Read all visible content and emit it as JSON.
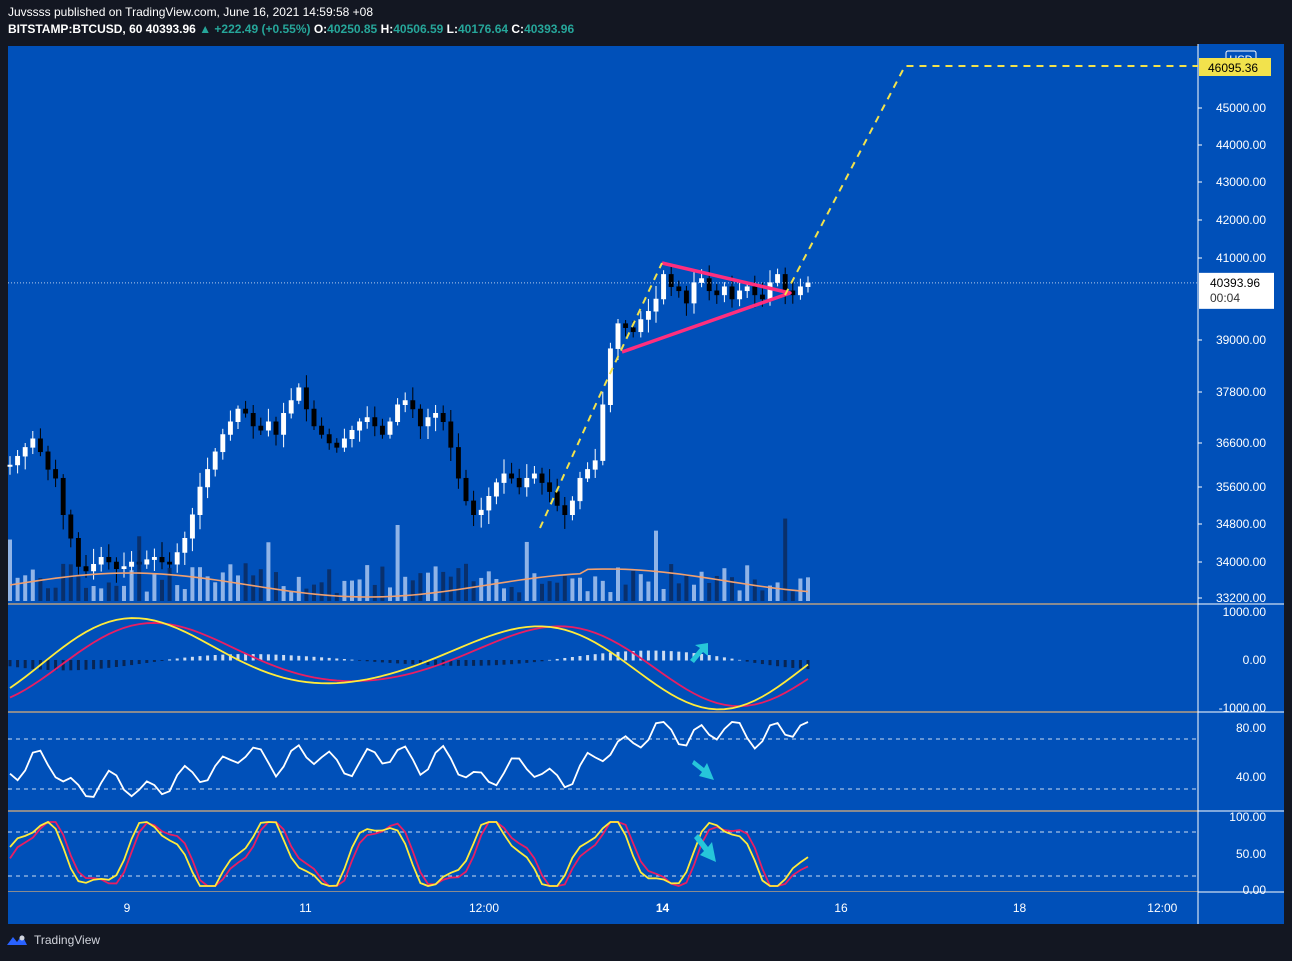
{
  "header": {
    "publisher_line": "Juvssss published on TradingView.com, June 16, 2021 14:59:58 +08",
    "symbol": "BITSTAMP:BTCUSD, 60",
    "last": "40393.96",
    "change": "▲ +222.49 (+0.55%)",
    "o_label": "O:",
    "o_value": "40250.85",
    "h_label": "H:",
    "h_value": "40506.59",
    "l_label": "L:",
    "l_value": "40176.64",
    "c_label": "C:",
    "c_value": "40393.96"
  },
  "footer": {
    "brand": "TradingView"
  },
  "colors": {
    "pane_bg": "#0050b9",
    "candle_up": "#ffffff",
    "candle_down": "#000000",
    "triangle": "#ff2e7e",
    "projection": "#f2e24c",
    "macd_line": "#ffeb3b",
    "signal_line": "#e91e63",
    "arrow": "#26c6da",
    "volume_ma": "#f0a070"
  },
  "chart_data": [
    {
      "type": "candlestick",
      "name_shown": "BITSTAMP:BTCUSD",
      "currency_label": "USD",
      "y_ticks": [
        "45000.00",
        "44000.00",
        "43000.00",
        "42000.00",
        "41000.00",
        "39000.00",
        "37800.00",
        "36600.00",
        "35600.00",
        "34800.00",
        "34000.00",
        "33200.00"
      ],
      "y_tick_values": [
        45000,
        44000,
        43000,
        42000,
        41000,
        39000,
        37800,
        36600,
        35600,
        34800,
        34000,
        33200
      ],
      "x_ticks": [
        "9",
        "11",
        "12:00",
        "14",
        "16",
        "18",
        "12:00"
      ],
      "x_tick_pos": [
        0.1,
        0.25,
        0.4,
        0.55,
        0.7,
        0.85,
        0.97
      ],
      "last_price_label": "40393.96",
      "countdown_label": "00:04",
      "target_label": "46095.36",
      "price_path": [
        36100,
        36300,
        36500,
        36700,
        36400,
        36000,
        35800,
        35000,
        34500,
        33900,
        33800,
        33950,
        34100,
        34000,
        33850,
        33900,
        34000,
        33950,
        34050,
        34100,
        34000,
        33950,
        34200,
        34500,
        35000,
        35600,
        36000,
        36400,
        36800,
        37100,
        37400,
        37300,
        37000,
        36900,
        37100,
        36800,
        37300,
        37600,
        37900,
        37400,
        37000,
        36800,
        36600,
        36500,
        36700,
        36900,
        37100,
        37200,
        37000,
        36800,
        37100,
        37500,
        37600,
        37400,
        37000,
        37200,
        37300,
        37100,
        36500,
        35800,
        35300,
        35000,
        35100,
        35400,
        35700,
        35900,
        35800,
        35600,
        35800,
        35900,
        35700,
        35500,
        35200,
        35000,
        35300,
        35800,
        36000,
        36200,
        37500,
        38800,
        39400,
        39300,
        39200,
        39500,
        39700,
        40000,
        40600,
        40300,
        40200,
        39900,
        40400,
        40500,
        40200,
        40100,
        40300,
        40000,
        40200,
        40300,
        40100,
        40000,
        40400,
        40600,
        40200,
        40100,
        40300,
        40393.96
      ],
      "volume_ma_note": ""
    },
    {
      "type": "line",
      "pane": "MACD",
      "y_ticks": [
        "1000.00",
        "0.00",
        "-1000.00"
      ],
      "y_tick_values": [
        1000,
        0,
        -1000
      ]
    },
    {
      "type": "line",
      "pane": "RSI",
      "y_ticks": [
        "80.00",
        "40.00"
      ],
      "y_tick_values": [
        80,
        40
      ],
      "bands": [
        70,
        30
      ]
    },
    {
      "type": "line",
      "pane": "Stochastic",
      "y_ticks": [
        "100.00",
        "50.00",
        "0.00"
      ],
      "y_tick_values": [
        100,
        50,
        0
      ],
      "bands": [
        80,
        20
      ]
    }
  ]
}
